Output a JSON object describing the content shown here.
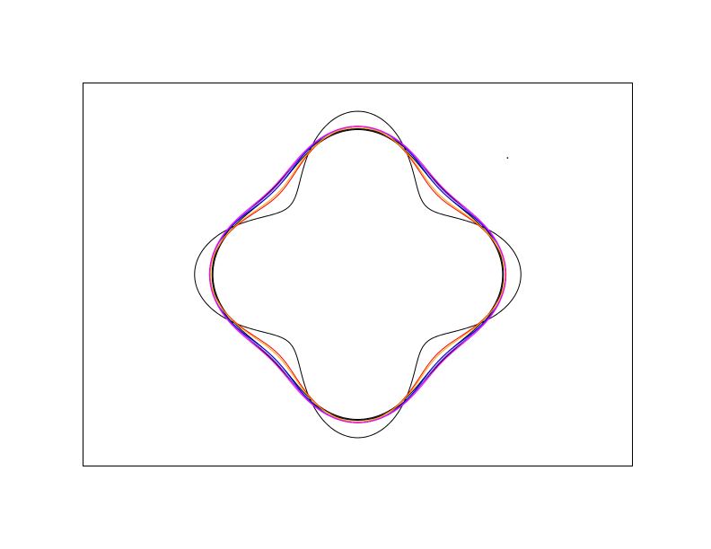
{
  "chart_data": {
    "type": "line",
    "title": "",
    "xlabel": "",
    "ylabel": "",
    "xlim": [
      -1.65,
      1.65
    ],
    "ylim": [
      -1.15,
      1.15
    ],
    "grid": false,
    "legend": "none",
    "series": [
      {
        "color": "#000000",
        "a": [
          0.78,
          0.2
        ]
      },
      {
        "color": "#000000",
        "a": [
          0.8,
          0.075
        ]
      },
      {
        "color": "#000000",
        "a": [
          0.79,
          0.08
        ]
      },
      {
        "color": "#ff0000",
        "a": [
          0.78,
          0.105
        ]
      },
      {
        "color": "#ffa500",
        "a": [
          0.785,
          0.1
        ]
      },
      {
        "color": "#0000ff",
        "a": [
          0.8,
          0.09
        ]
      },
      {
        "color": "#8a2be2",
        "a": [
          0.805,
          0.085
        ]
      },
      {
        "color": "#ff00ff",
        "a": [
          0.81,
          0.08
        ]
      }
    ],
    "points": [
      {
        "color": "#000000",
        "x": 0.9,
        "y": 0.7
      }
    ]
  }
}
